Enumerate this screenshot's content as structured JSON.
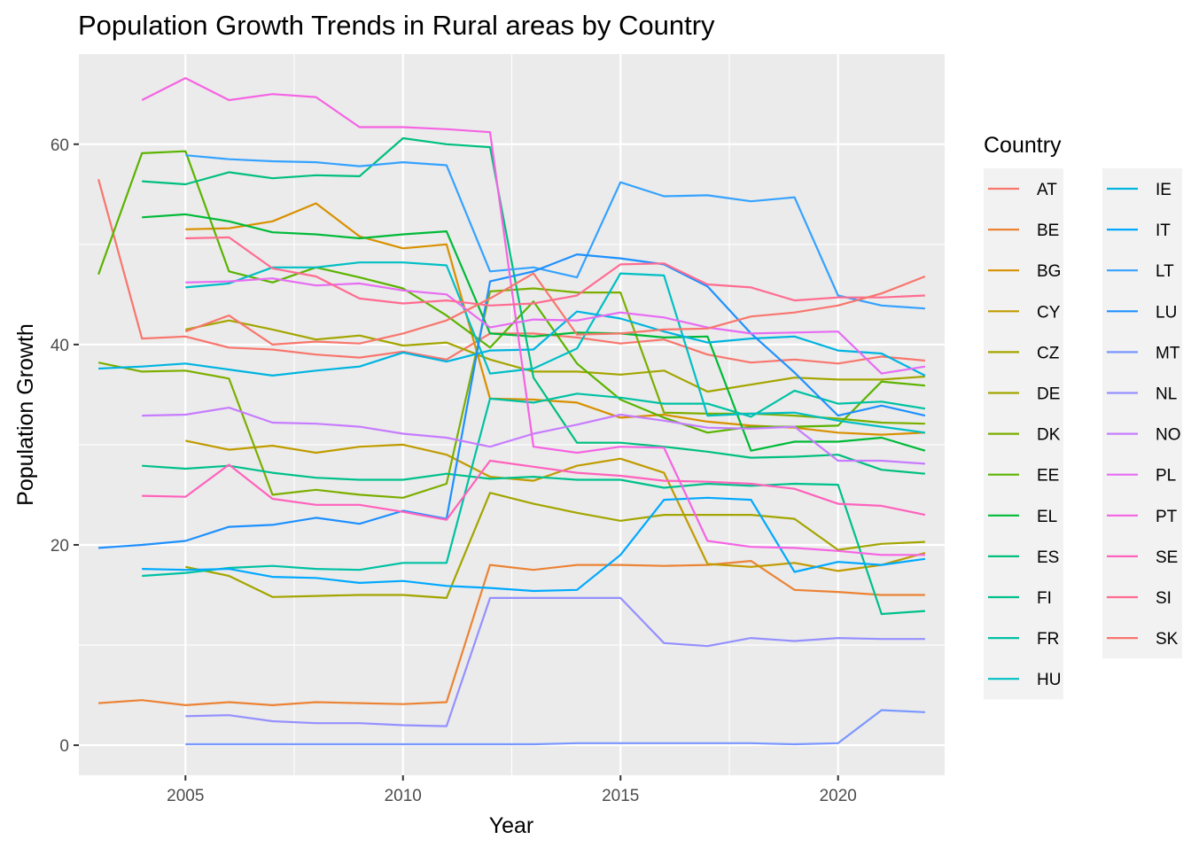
{
  "chart_data": {
    "type": "line",
    "title": "Population Growth Trends in Rural areas by Country",
    "xlabel": "Year",
    "ylabel": "Population Growth",
    "xlim": [
      2002.55,
      2022.45
    ],
    "ylim": [
      -3.0,
      69.0
    ],
    "x_ticks": [
      2005,
      2010,
      2015,
      2020
    ],
    "y_ticks": [
      0,
      20,
      40,
      60
    ],
    "grid": true,
    "legend": {
      "title": "Country",
      "position": "right",
      "columns": 2
    },
    "series": [
      {
        "name": "AT",
        "color": "#F8766D",
        "x": [
          2003,
          2004,
          2005,
          2006,
          2007,
          2008,
          2009,
          2010,
          2011,
          2012,
          2013,
          2014,
          2015,
          2016,
          2017,
          2018,
          2019,
          2020,
          2021,
          2022
        ],
        "values": [
          56.5,
          40.6,
          40.8,
          39.7,
          39.5,
          39.0,
          38.7,
          39.3,
          38.5,
          41.1,
          41.1,
          40.7,
          40.1,
          40.5,
          39.0,
          38.2,
          38.5,
          38.1,
          38.8,
          38.4
        ]
      },
      {
        "name": "BE",
        "color": "#EB8335",
        "x": [
          2003,
          2004,
          2005,
          2006,
          2007,
          2008,
          2009,
          2010,
          2011,
          2012,
          2013,
          2014,
          2015,
          2016,
          2017,
          2018,
          2019,
          2020,
          2021,
          2022
        ],
        "values": [
          4.2,
          4.5,
          4.0,
          4.3,
          4.0,
          4.3,
          4.2,
          4.1,
          4.3,
          18.0,
          17.5,
          18.0,
          18.0,
          17.9,
          18.0,
          18.4,
          15.5,
          15.3,
          15.0,
          15.0
        ]
      },
      {
        "name": "BG",
        "color": "#D89000",
        "x": [
          2005,
          2006,
          2007,
          2008,
          2009,
          2010,
          2011,
          2012,
          2013,
          2014,
          2015,
          2016,
          2017,
          2018,
          2019,
          2020,
          2021,
          2022
        ],
        "values": [
          51.5,
          51.6,
          52.3,
          54.1,
          50.8,
          49.6,
          50.0,
          34.6,
          34.5,
          34.2,
          32.7,
          33.0,
          32.3,
          31.9,
          31.7,
          31.2,
          31.0,
          31.2
        ]
      },
      {
        "name": "CY",
        "color": "#C09B00",
        "x": [
          2005,
          2006,
          2007,
          2008,
          2009,
          2010,
          2011,
          2012,
          2013,
          2014,
          2015,
          2016,
          2017,
          2018,
          2019,
          2020,
          2021,
          2022
        ],
        "values": [
          30.4,
          29.5,
          29.9,
          29.2,
          29.8,
          30.0,
          29.0,
          26.8,
          26.4,
          27.9,
          28.6,
          27.2,
          18.1,
          17.8,
          18.2,
          17.4,
          18.0,
          19.2
        ]
      },
      {
        "name": "CZ",
        "color": "#A3A500",
        "x": [
          2005,
          2006,
          2007,
          2008,
          2009,
          2010,
          2011,
          2012,
          2013,
          2014,
          2015,
          2016,
          2017,
          2018,
          2019,
          2020,
          2021,
          2022
        ],
        "values": [
          41.5,
          42.4,
          41.5,
          40.5,
          40.9,
          39.9,
          40.2,
          38.5,
          37.3,
          37.3,
          37.0,
          37.4,
          35.3,
          36.0,
          36.7,
          36.5,
          36.5,
          36.8
        ]
      },
      {
        "name": "DE",
        "color": "#A3A500",
        "x": [
          2005,
          2006,
          2007,
          2008,
          2009,
          2010,
          2011,
          2012,
          2013,
          2014,
          2015,
          2016,
          2017,
          2018,
          2019,
          2020,
          2021,
          2022
        ],
        "values": [
          17.8,
          16.9,
          14.8,
          14.9,
          15.0,
          15.0,
          14.7,
          25.2,
          24.1,
          23.2,
          22.4,
          23.0,
          23.0,
          23.0,
          22.6,
          19.5,
          20.1,
          20.3
        ]
      },
      {
        "name": "DK",
        "color": "#7CAE00",
        "x": [
          2003,
          2004,
          2005,
          2006,
          2007,
          2008,
          2009,
          2010,
          2011,
          2012,
          2013,
          2014,
          2015,
          2016,
          2017,
          2018,
          2019,
          2020,
          2021,
          2022
        ],
        "values": [
          38.2,
          37.3,
          37.4,
          36.6,
          25.0,
          25.5,
          25.0,
          24.7,
          26.1,
          45.3,
          45.6,
          45.2,
          45.2,
          33.2,
          33.1,
          33.1,
          32.9,
          32.6,
          32.2,
          32.1
        ]
      },
      {
        "name": "EE",
        "color": "#5BB300",
        "x": [
          2003,
          2004,
          2005,
          2006,
          2007,
          2008,
          2009,
          2010,
          2011,
          2012,
          2013,
          2014,
          2015,
          2016,
          2017,
          2018,
          2019,
          2020,
          2021,
          2022
        ],
        "values": [
          47.0,
          59.1,
          59.3,
          47.3,
          46.2,
          47.7,
          46.7,
          45.6,
          42.9,
          39.7,
          44.3,
          38.1,
          34.5,
          32.7,
          31.2,
          31.8,
          31.8,
          31.9,
          36.3,
          35.9
        ]
      },
      {
        "name": "EL",
        "color": "#00BA38",
        "x": [
          2004,
          2005,
          2006,
          2007,
          2008,
          2009,
          2010,
          2011,
          2012,
          2013,
          2014,
          2015,
          2016,
          2017,
          2018,
          2019,
          2020,
          2021,
          2022
        ],
        "values": [
          52.7,
          53.0,
          52.3,
          51.2,
          51.0,
          50.6,
          51.0,
          51.3,
          41.1,
          40.8,
          41.2,
          41.1,
          40.7,
          40.8,
          29.4,
          30.3,
          30.3,
          30.7,
          29.4
        ]
      },
      {
        "name": "ES",
        "color": "#00BF7D",
        "x": [
          2004,
          2005,
          2006,
          2007,
          2008,
          2009,
          2010,
          2011,
          2012,
          2013,
          2014,
          2015,
          2016,
          2017,
          2018,
          2019,
          2020,
          2021,
          2022
        ],
        "values": [
          56.3,
          56.0,
          57.2,
          56.6,
          56.9,
          56.8,
          60.6,
          60.0,
          59.7,
          36.7,
          30.2,
          30.2,
          29.8,
          29.3,
          28.7,
          28.8,
          29.0,
          27.5,
          27.1
        ]
      },
      {
        "name": "FI",
        "color": "#00C08B",
        "x": [
          2003,
          2004,
          2005,
          2006,
          2007,
          2008,
          2009,
          2010,
          2011,
          2012,
          2013,
          2014,
          2015,
          2016,
          2017,
          2018,
          2019,
          2020,
          2021,
          2022
        ],
        "values": [
          null,
          27.9,
          27.6,
          27.9,
          27.2,
          26.7,
          26.5,
          26.5,
          27.1,
          26.6,
          26.8,
          26.5,
          26.5,
          25.7,
          26.1,
          25.9,
          26.1,
          26.0,
          13.1,
          13.4
        ]
      },
      {
        "name": "FR",
        "color": "#00C1A3",
        "x": [
          2004,
          2005,
          2006,
          2007,
          2008,
          2009,
          2010,
          2011,
          2012,
          2013,
          2014,
          2015,
          2016,
          2017,
          2018,
          2019,
          2020,
          2021,
          2022
        ],
        "values": [
          16.9,
          17.2,
          17.7,
          17.9,
          17.6,
          17.5,
          18.2,
          18.2,
          34.6,
          34.2,
          35.1,
          34.7,
          34.1,
          34.1,
          32.8,
          35.4,
          34.1,
          34.3,
          33.6
        ]
      },
      {
        "name": "HU",
        "color": "#00BFC4",
        "x": [
          2005,
          2006,
          2007,
          2008,
          2009,
          2010,
          2011,
          2012,
          2013,
          2014,
          2015,
          2016,
          2017,
          2018,
          2019,
          2020,
          2021,
          2022
        ],
        "values": [
          45.7,
          46.1,
          47.7,
          47.7,
          48.2,
          48.2,
          47.9,
          37.1,
          37.6,
          39.6,
          47.1,
          46.9,
          32.9,
          33.1,
          33.2,
          32.4,
          31.8,
          31.2
        ]
      },
      {
        "name": "IE",
        "color": "#00B4E0",
        "x": [
          2003,
          2004,
          2005,
          2006,
          2007,
          2008,
          2009,
          2010,
          2011,
          2012,
          2013,
          2014,
          2015,
          2016,
          2017,
          2018,
          2019,
          2020,
          2021,
          2022
        ],
        "values": [
          37.6,
          37.8,
          38.1,
          37.5,
          36.9,
          37.4,
          37.8,
          39.2,
          38.3,
          39.4,
          39.5,
          43.3,
          42.6,
          41.3,
          40.2,
          40.6,
          40.8,
          39.4,
          39.1,
          36.9
        ]
      },
      {
        "name": "IT",
        "color": "#00A9FF",
        "x": [
          2004,
          2005,
          2006,
          2007,
          2008,
          2009,
          2010,
          2011,
          2012,
          2013,
          2014,
          2015,
          2016,
          2017,
          2018,
          2019,
          2020,
          2021,
          2022
        ],
        "values": [
          17.6,
          17.5,
          17.6,
          16.8,
          16.7,
          16.2,
          16.4,
          15.9,
          15.7,
          15.4,
          15.5,
          19.0,
          24.5,
          24.7,
          24.5,
          17.3,
          18.3,
          18.0,
          18.6
        ]
      },
      {
        "name": "LT",
        "color": "#35A2FF",
        "x": [
          2005,
          2006,
          2007,
          2008,
          2009,
          2010,
          2011,
          2012,
          2013,
          2014,
          2015,
          2016,
          2017,
          2018,
          2019,
          2020,
          2021,
          2022
        ],
        "values": [
          58.9,
          58.5,
          58.3,
          58.2,
          57.8,
          58.2,
          57.9,
          47.3,
          47.7,
          46.7,
          56.2,
          54.8,
          54.9,
          54.3,
          54.7,
          44.9,
          43.9,
          43.6
        ]
      },
      {
        "name": "LU",
        "color": "#1E90FF",
        "x": [
          2003,
          2004,
          2005,
          2006,
          2007,
          2008,
          2009,
          2010,
          2011,
          2012,
          2013,
          2014,
          2015,
          2016,
          2017,
          2018,
          2019,
          2020,
          2021,
          2022
        ],
        "values": [
          19.7,
          20.0,
          20.4,
          21.8,
          22.0,
          22.7,
          22.1,
          23.4,
          22.6,
          46.3,
          47.3,
          49.0,
          48.6,
          48.0,
          45.8,
          41.1,
          37.2,
          32.9,
          33.9,
          32.9
        ]
      },
      {
        "name": "MT",
        "color": "#7997FF",
        "x": [
          2005,
          2006,
          2007,
          2008,
          2009,
          2010,
          2011,
          2012,
          2013,
          2014,
          2015,
          2016,
          2017,
          2018,
          2019,
          2020,
          2021,
          2022
        ],
        "values": [
          0.1,
          0.1,
          0.1,
          0.1,
          0.1,
          0.1,
          0.1,
          0.1,
          0.1,
          0.2,
          0.2,
          0.2,
          0.2,
          0.2,
          0.1,
          0.2,
          3.5,
          3.3
        ]
      },
      {
        "name": "NL",
        "color": "#9590FF",
        "x": [
          2005,
          2006,
          2007,
          2008,
          2009,
          2010,
          2011,
          2012,
          2013,
          2014,
          2015,
          2016,
          2017,
          2018,
          2019,
          2020,
          2021,
          2022
        ],
        "values": [
          2.9,
          3.0,
          2.4,
          2.2,
          2.2,
          2.0,
          1.9,
          14.7,
          14.7,
          14.7,
          14.7,
          10.2,
          9.9,
          10.7,
          10.4,
          10.7,
          10.6,
          10.6
        ]
      },
      {
        "name": "NO",
        "color": "#C77CFF",
        "x": [
          2004,
          2005,
          2006,
          2007,
          2008,
          2009,
          2010,
          2011,
          2012,
          2013,
          2014,
          2015,
          2016,
          2017,
          2018,
          2019,
          2020,
          2021,
          2022
        ],
        "values": [
          32.9,
          33.0,
          33.7,
          32.2,
          32.1,
          31.8,
          31.1,
          30.7,
          29.8,
          31.1,
          32.0,
          33.0,
          32.4,
          31.7,
          31.6,
          31.8,
          28.4,
          28.4,
          28.1
        ]
      },
      {
        "name": "PL",
        "color": "#E76BF3",
        "x": [
          2005,
          2006,
          2007,
          2008,
          2009,
          2010,
          2011,
          2012,
          2013,
          2014,
          2015,
          2016,
          2017,
          2018,
          2019,
          2020,
          2021,
          2022
        ],
        "values": [
          46.2,
          46.3,
          46.6,
          45.9,
          46.1,
          45.4,
          45.0,
          41.7,
          42.5,
          42.4,
          43.2,
          42.7,
          41.7,
          41.1,
          41.2,
          41.3,
          37.1,
          37.8
        ]
      },
      {
        "name": "PT",
        "color": "#F564E3",
        "x": [
          2004,
          2005,
          2006,
          2007,
          2008,
          2009,
          2010,
          2011,
          2012,
          2013,
          2014,
          2015,
          2016,
          2017,
          2018,
          2019,
          2020,
          2021,
          2022
        ],
        "values": [
          64.4,
          66.6,
          64.4,
          65.0,
          64.7,
          61.7,
          61.7,
          61.5,
          61.2,
          29.8,
          29.2,
          29.8,
          29.7,
          20.4,
          19.8,
          19.7,
          19.4,
          19.0,
          19.0
        ]
      },
      {
        "name": "SE",
        "color": "#FF62BC",
        "x": [
          2004,
          2005,
          2006,
          2007,
          2008,
          2009,
          2010,
          2011,
          2012,
          2013,
          2014,
          2015,
          2016,
          2017,
          2018,
          2019,
          2020,
          2021,
          2022
        ],
        "values": [
          24.9,
          24.8,
          28.0,
          24.6,
          24.0,
          24.0,
          23.3,
          22.5,
          28.4,
          27.8,
          27.2,
          26.9,
          26.4,
          26.3,
          26.1,
          25.6,
          24.1,
          23.9,
          23.0
        ]
      },
      {
        "name": "SI",
        "color": "#FF6C91",
        "x": [
          2005,
          2006,
          2007,
          2008,
          2009,
          2010,
          2011,
          2012,
          2013,
          2014,
          2015,
          2016,
          2017,
          2018,
          2019,
          2020,
          2021,
          2022
        ],
        "values": [
          50.6,
          50.7,
          47.6,
          46.8,
          44.6,
          44.1,
          44.4,
          43.9,
          44.1,
          44.9,
          48.0,
          48.1,
          46.0,
          45.7,
          44.4,
          44.7,
          44.7,
          44.9
        ]
      },
      {
        "name": "SK",
        "color": "#F8766D",
        "x": [
          2005,
          2006,
          2007,
          2008,
          2009,
          2010,
          2011,
          2012,
          2013,
          2014,
          2015,
          2016,
          2017,
          2018,
          2019,
          2020,
          2021,
          2022
        ],
        "values": [
          41.3,
          42.9,
          40.0,
          40.3,
          40.1,
          41.1,
          42.4,
          44.6,
          47.1,
          41.0,
          41.1,
          41.5,
          41.6,
          42.8,
          43.2,
          43.9,
          45.1,
          46.8
        ]
      }
    ]
  }
}
